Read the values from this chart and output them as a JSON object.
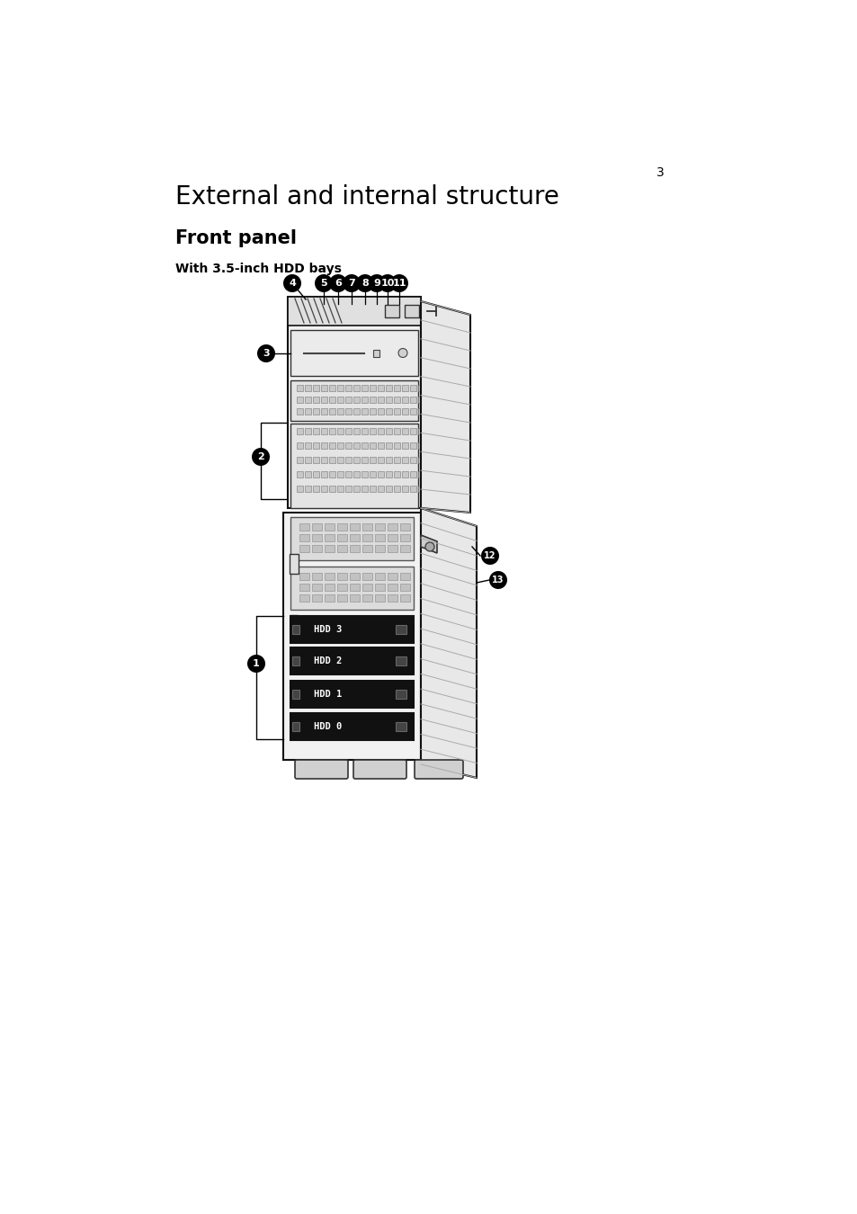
{
  "page_number": "3",
  "title": "External and internal structure",
  "subtitle": "Front panel",
  "subtitle2": "With 3.5-inch HDD bays",
  "bg_color": "#ffffff",
  "title_fontsize": 20,
  "subtitle_fontsize": 15,
  "subtitle2_fontsize": 10,
  "page_num_fontsize": 10
}
